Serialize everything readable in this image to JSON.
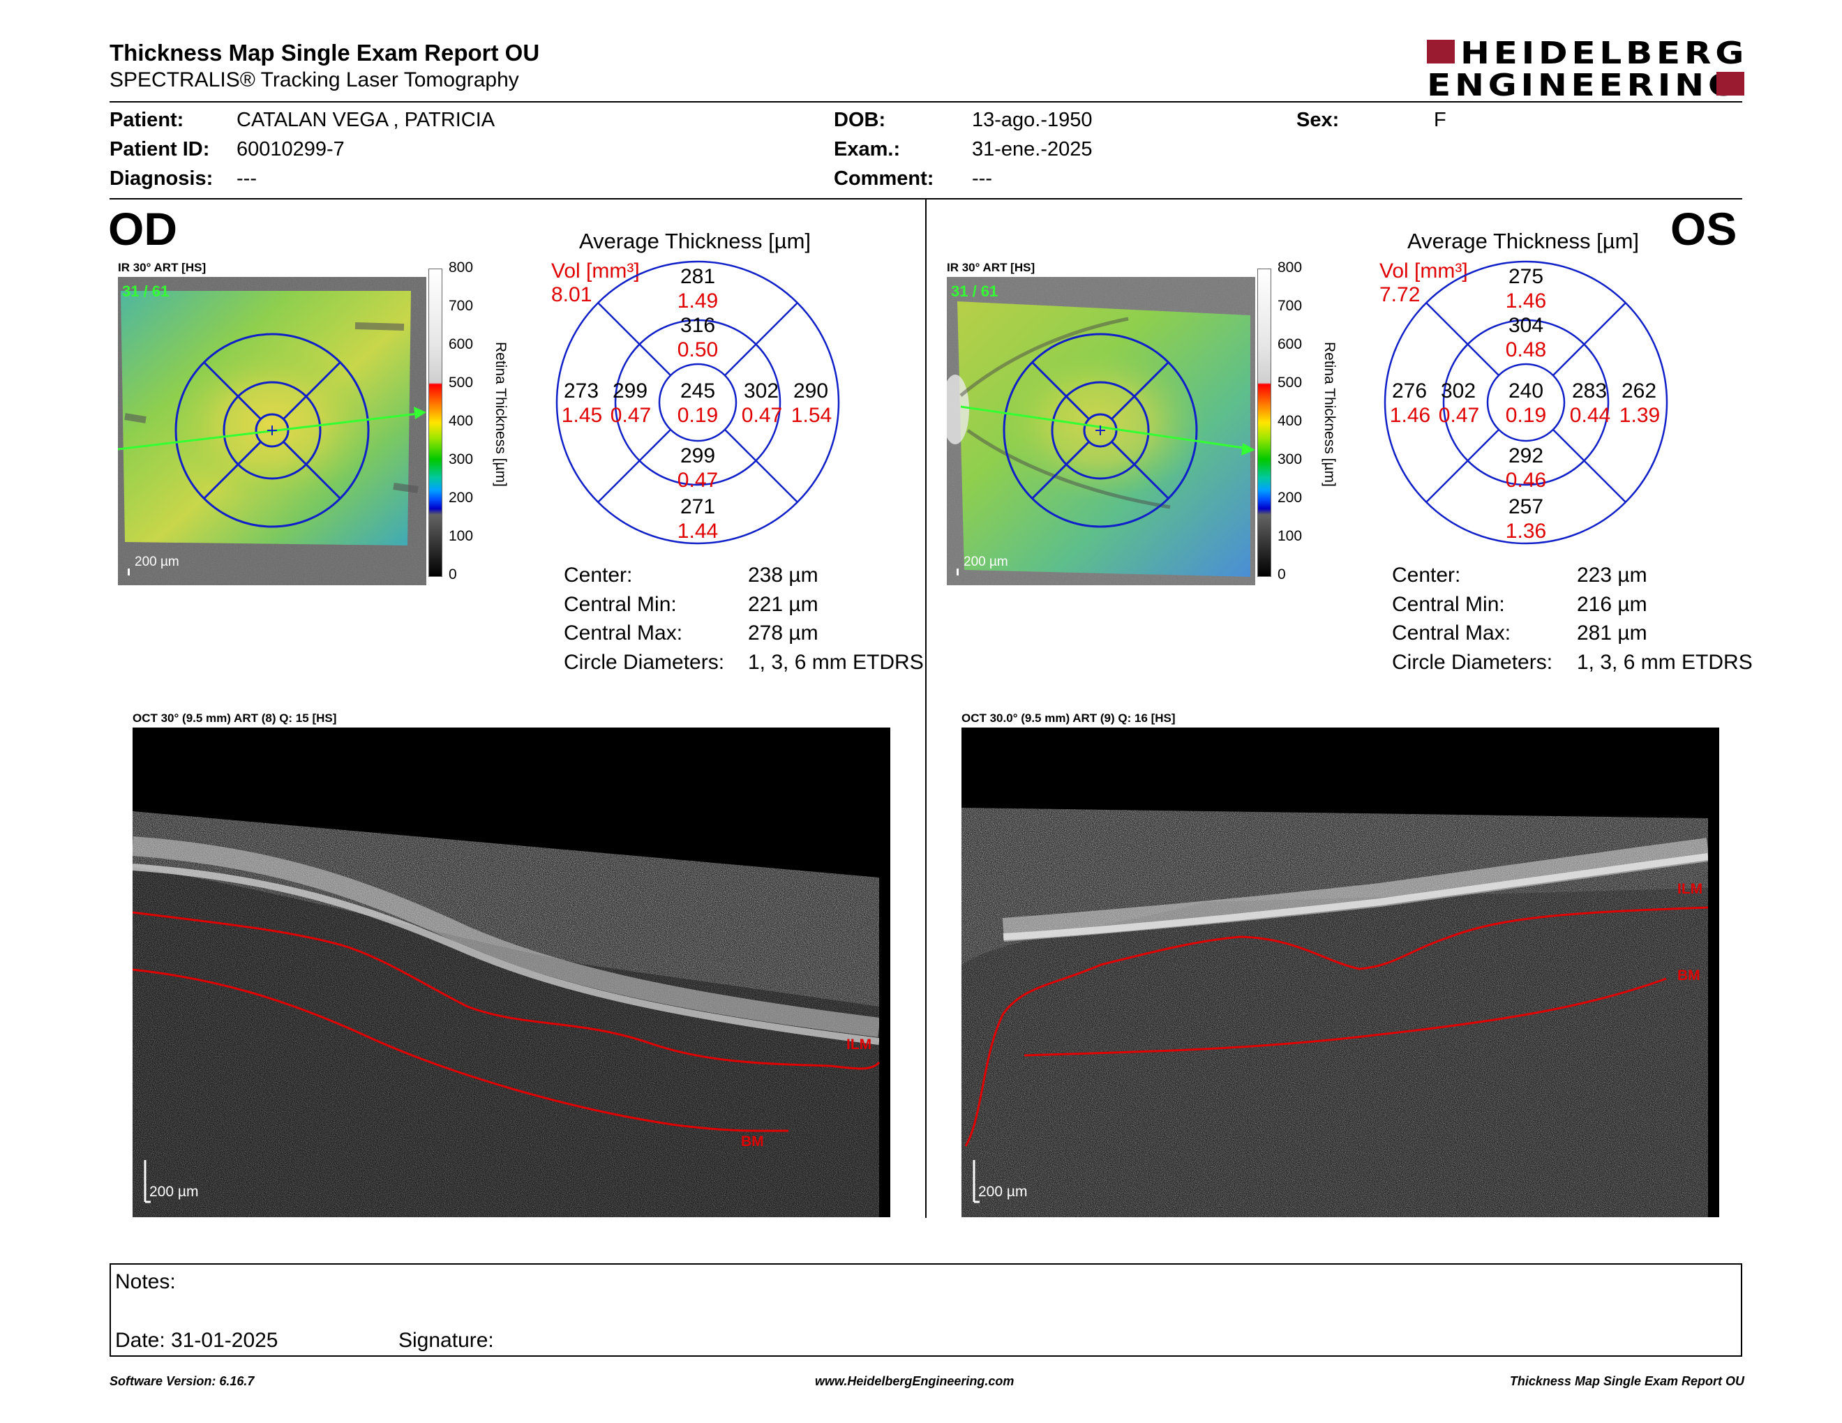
{
  "header": {
    "title": "Thickness Map Single Exam Report OU",
    "subtitle": "SPECTRALIS® Tracking Laser Tomography",
    "logo_line1": "HEIDELBERG",
    "logo_line2": "ENGINEERING"
  },
  "patient": {
    "patient_label": "Patient:",
    "patient_value": "CATALAN VEGA , PATRICIA",
    "id_label": "Patient ID:",
    "id_value": "60010299-7",
    "diagnosis_label": "Diagnosis:",
    "diagnosis_value": "---",
    "dob_label": "DOB:",
    "dob_value": "13-ago.-1950",
    "exam_label": "Exam.:",
    "exam_value": "31-ene.-2025",
    "comment_label": "Comment:",
    "comment_value": "---",
    "sex_label": "Sex:",
    "sex_value": "F"
  },
  "colorbar_ticks": [
    "800",
    "700",
    "600",
    "500",
    "400",
    "300",
    "200",
    "100",
    "0"
  ],
  "colorbar_label": "Retina  Thickness [µm]",
  "od": {
    "eye": "OD",
    "fundus_label": "IR 30° ART [HS]",
    "frame": "31 / 61",
    "scale": "200 µm",
    "avg_title": "Average Thickness [µm]",
    "vol_label": "Vol [mm³]",
    "vol_value": "8.01",
    "grid": {
      "outer_sup": "281",
      "outer_sup_vol": "1.49",
      "inner_sup": "316",
      "inner_sup_vol": "0.50",
      "outer_nas": "273",
      "outer_nas_vol": "1.45",
      "inner_nas": "299",
      "inner_nas_vol": "0.47",
      "center": "245",
      "center_vol": "0.19",
      "inner_temp": "302",
      "inner_temp_vol": "0.47",
      "outer_temp": "290",
      "outer_temp_vol": "1.54",
      "inner_inf": "299",
      "inner_inf_vol": "0.47",
      "outer_inf": "271",
      "outer_inf_vol": "1.44"
    },
    "stats": {
      "center_label": "Center:",
      "center_value": "238 µm",
      "min_label": "Central Min:",
      "min_value": "221 µm",
      "max_label": "Central Max:",
      "max_value": "278 µm",
      "diam_label": "Circle Diameters:",
      "diam_value": "1, 3, 6 mm ETDRS"
    },
    "oct_label": "OCT 30° (9.5 mm) ART (8) Q: 15 [HS]",
    "oct_scale": "200 µm",
    "ilm": "ILM",
    "bm": "BM"
  },
  "os": {
    "eye": "OS",
    "fundus_label": "IR 30° ART [HS]",
    "frame": "31 / 61",
    "scale": "200 µm",
    "avg_title": "Average Thickness [µm]",
    "vol_label": "Vol [mm³]",
    "vol_value": "7.72",
    "grid": {
      "outer_sup": "275",
      "outer_sup_vol": "1.46",
      "inner_sup": "304",
      "inner_sup_vol": "0.48",
      "outer_nas": "276",
      "outer_nas_vol": "1.46",
      "inner_nas": "302",
      "inner_nas_vol": "0.47",
      "center": "240",
      "center_vol": "0.19",
      "inner_temp": "283",
      "inner_temp_vol": "0.44",
      "outer_temp": "262",
      "outer_temp_vol": "1.39",
      "inner_inf": "292",
      "inner_inf_vol": "0.46",
      "outer_inf": "257",
      "outer_inf_vol": "1.36"
    },
    "stats": {
      "center_label": "Center:",
      "center_value": "223 µm",
      "min_label": "Central Min:",
      "min_value": "216 µm",
      "max_label": "Central Max:",
      "max_value": "281 µm",
      "diam_label": "Circle Diameters:",
      "diam_value": "1, 3, 6 mm ETDRS"
    },
    "oct_label": "OCT 30.0° (9.5 mm) ART (9) Q: 16 [HS]",
    "oct_scale": "200 µm",
    "ilm": "ILM",
    "bm": "BM"
  },
  "notes": {
    "notes_label": "Notes:",
    "date_label": "Date: 31-01-2025",
    "signature_label": "Signature:"
  },
  "footer": {
    "version": "Software Version: 6.16.7",
    "url": "www.HeidelbergEngineering.com",
    "report": "Thickness Map Single Exam Report OU"
  }
}
